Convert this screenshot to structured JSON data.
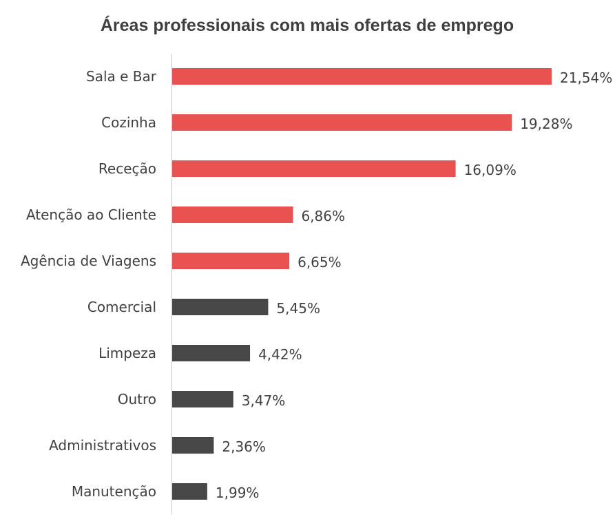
{
  "chart_data": {
    "type": "bar",
    "orientation": "horizontal",
    "title": "Áreas professionais com mais ofertas de emprego",
    "xlabel": "",
    "ylabel": "",
    "grid": false,
    "legend": "none",
    "xlim": [
      0,
      22.6
    ],
    "categories": [
      "Sala e Bar",
      "Cozinha",
      "Receção",
      "Atenção ao Cliente",
      "Agência de Viagens",
      "Comercial",
      "Limpeza",
      "Outro",
      "Administrativos",
      "Manutenção"
    ],
    "values": [
      21.54,
      19.28,
      16.09,
      6.86,
      6.65,
      5.45,
      4.42,
      3.47,
      2.36,
      1.99
    ],
    "value_labels": [
      "21,54%",
      "19,28%",
      "16,09%",
      "6,86%",
      "6,65%",
      "5,45%",
      "4,42%",
      "3,47%",
      "2,36%",
      "1,99%"
    ],
    "colors": [
      "#e85352",
      "#e85352",
      "#e85352",
      "#e85352",
      "#e85352",
      "#474747",
      "#474747",
      "#474747",
      "#474747",
      "#474747"
    ],
    "axis_color": "#d9d9d9"
  }
}
